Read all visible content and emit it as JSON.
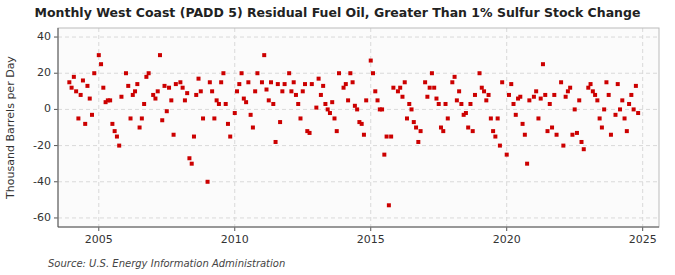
{
  "chart_data": {
    "type": "scatter",
    "title": "Monthly West Coast (PADD 5) Residual Fuel Oil, Greater Than 1% Sulfur Stock Change",
    "ylabel": "Thousand Barrels per Day",
    "annotations": [
      "Source: U.S. Energy Information Administration"
    ],
    "color": "#cc0000",
    "marker": "square",
    "grid": true,
    "xlim": [
      2003.5,
      2025.6
    ],
    "xticks": [
      2005,
      2010,
      2015,
      2020,
      2025
    ],
    "ylim": [
      -65,
      45
    ],
    "yticks": [
      -60,
      -40,
      -20,
      0,
      20,
      40
    ],
    "x": [
      2003.917,
      2004.0,
      2004.083,
      2004.167,
      2004.25,
      2004.333,
      2004.417,
      2004.5,
      2004.583,
      2004.667,
      2004.75,
      2004.833,
      2005.0,
      2005.083,
      2005.167,
      2005.25,
      2005.333,
      2005.417,
      2005.5,
      2005.583,
      2005.667,
      2005.75,
      2005.833,
      2006.0,
      2006.083,
      2006.167,
      2006.25,
      2006.333,
      2006.417,
      2006.5,
      2006.583,
      2006.667,
      2006.75,
      2006.833,
      2007.0,
      2007.083,
      2007.167,
      2007.25,
      2007.333,
      2007.417,
      2007.5,
      2007.583,
      2007.667,
      2007.75,
      2007.833,
      2008.0,
      2008.083,
      2008.167,
      2008.25,
      2008.333,
      2008.417,
      2008.5,
      2008.583,
      2008.667,
      2008.75,
      2008.833,
      2009.0,
      2009.083,
      2009.167,
      2009.25,
      2009.333,
      2009.417,
      2009.5,
      2009.583,
      2009.667,
      2009.75,
      2009.833,
      2010.0,
      2010.083,
      2010.167,
      2010.25,
      2010.333,
      2010.417,
      2010.5,
      2010.583,
      2010.667,
      2010.75,
      2010.833,
      2011.0,
      2011.083,
      2011.167,
      2011.25,
      2011.333,
      2011.417,
      2011.5,
      2011.583,
      2011.667,
      2011.75,
      2011.833,
      2012.0,
      2012.083,
      2012.167,
      2012.25,
      2012.333,
      2012.417,
      2012.5,
      2012.583,
      2012.667,
      2012.75,
      2012.833,
      2013.0,
      2013.083,
      2013.167,
      2013.25,
      2013.333,
      2013.417,
      2013.5,
      2013.583,
      2013.667,
      2013.75,
      2013.833,
      2014.0,
      2014.083,
      2014.167,
      2014.25,
      2014.333,
      2014.417,
      2014.5,
      2014.583,
      2014.667,
      2014.75,
      2014.833,
      2015.0,
      2015.083,
      2015.167,
      2015.25,
      2015.333,
      2015.417,
      2015.5,
      2015.583,
      2015.667,
      2015.75,
      2015.833,
      2016.0,
      2016.083,
      2016.167,
      2016.25,
      2016.333,
      2016.417,
      2016.5,
      2016.583,
      2016.667,
      2016.75,
      2016.833,
      2017.0,
      2017.083,
      2017.167,
      2017.25,
      2017.333,
      2017.417,
      2017.5,
      2017.583,
      2017.667,
      2017.75,
      2017.833,
      2018.0,
      2018.083,
      2018.167,
      2018.25,
      2018.333,
      2018.417,
      2018.5,
      2018.583,
      2018.667,
      2018.75,
      2018.833,
      2019.0,
      2019.083,
      2019.167,
      2019.25,
      2019.333,
      2019.417,
      2019.5,
      2019.583,
      2019.667,
      2019.75,
      2019.833,
      2020.0,
      2020.083,
      2020.167,
      2020.25,
      2020.333,
      2020.417,
      2020.5,
      2020.583,
      2020.667,
      2020.75,
      2020.833,
      2021.0,
      2021.083,
      2021.167,
      2021.25,
      2021.333,
      2021.417,
      2021.5,
      2021.583,
      2021.667,
      2021.75,
      2021.833,
      2022.0,
      2022.083,
      2022.167,
      2022.25,
      2022.333,
      2022.417,
      2022.5,
      2022.583,
      2022.667,
      2022.75,
      2022.833,
      2023.0,
      2023.083,
      2023.167,
      2023.25,
      2023.333,
      2023.417,
      2023.5,
      2023.583,
      2023.667,
      2023.75,
      2023.833,
      2024.0,
      2024.083,
      2024.167,
      2024.25,
      2024.333,
      2024.417,
      2024.5,
      2024.583,
      2024.667,
      2024.75,
      2024.833
    ],
    "values": [
      15,
      12,
      18,
      10,
      -5,
      8,
      16,
      -8,
      13,
      6,
      -3,
      20,
      30,
      25,
      12,
      4,
      5,
      5,
      -8,
      -12,
      -15,
      -20,
      7,
      20,
      13,
      -5,
      8,
      10,
      14,
      -10,
      -5,
      3,
      18,
      20,
      8,
      6,
      10,
      30,
      -6,
      13,
      -1,
      12,
      5,
      -14,
      14,
      15,
      12,
      5,
      9,
      -27,
      -30,
      -15,
      8,
      17,
      10,
      -5,
      -40,
      15,
      10,
      -5,
      5,
      3,
      15,
      20,
      3,
      -8,
      -15,
      -2,
      10,
      14,
      20,
      6,
      4,
      15,
      -3,
      -10,
      10,
      20,
      15,
      30,
      11,
      5,
      15,
      3,
      -18,
      14,
      -7,
      10,
      14,
      20,
      10,
      15,
      8,
      3,
      -5,
      10,
      14,
      -12,
      -13,
      14,
      1,
      17,
      8,
      13,
      3,
      0,
      -2,
      4,
      -5,
      -12,
      20,
      12,
      14,
      5,
      20,
      15,
      2,
      0,
      -7,
      -8,
      -14,
      5,
      27,
      20,
      10,
      5,
      0,
      0,
      -25,
      -15,
      -53,
      -15,
      12,
      10,
      12,
      7,
      15,
      -5,
      3,
      0,
      -7,
      -10,
      -18,
      -12,
      15,
      7,
      12,
      20,
      12,
      6,
      3,
      -10,
      -12,
      3,
      -5,
      15,
      18,
      5,
      10,
      3,
      -3,
      -2,
      -10,
      3,
      -12,
      8,
      20,
      12,
      10,
      5,
      8,
      -5,
      -12,
      -15,
      -5,
      -20,
      15,
      -25,
      8,
      14,
      3,
      -3,
      6,
      7,
      -8,
      -14,
      -30,
      5,
      7,
      10,
      -5,
      6,
      25,
      8,
      -12,
      3,
      -10,
      8,
      -14,
      15,
      -20,
      7,
      10,
      12,
      -14,
      0,
      -13,
      5,
      -18,
      -22,
      12,
      14,
      10,
      8,
      5,
      -5,
      -10,
      0,
      15,
      8,
      -14,
      -3,
      14,
      0,
      5,
      -5,
      -12,
      3,
      8,
      0,
      13,
      -2
    ]
  }
}
